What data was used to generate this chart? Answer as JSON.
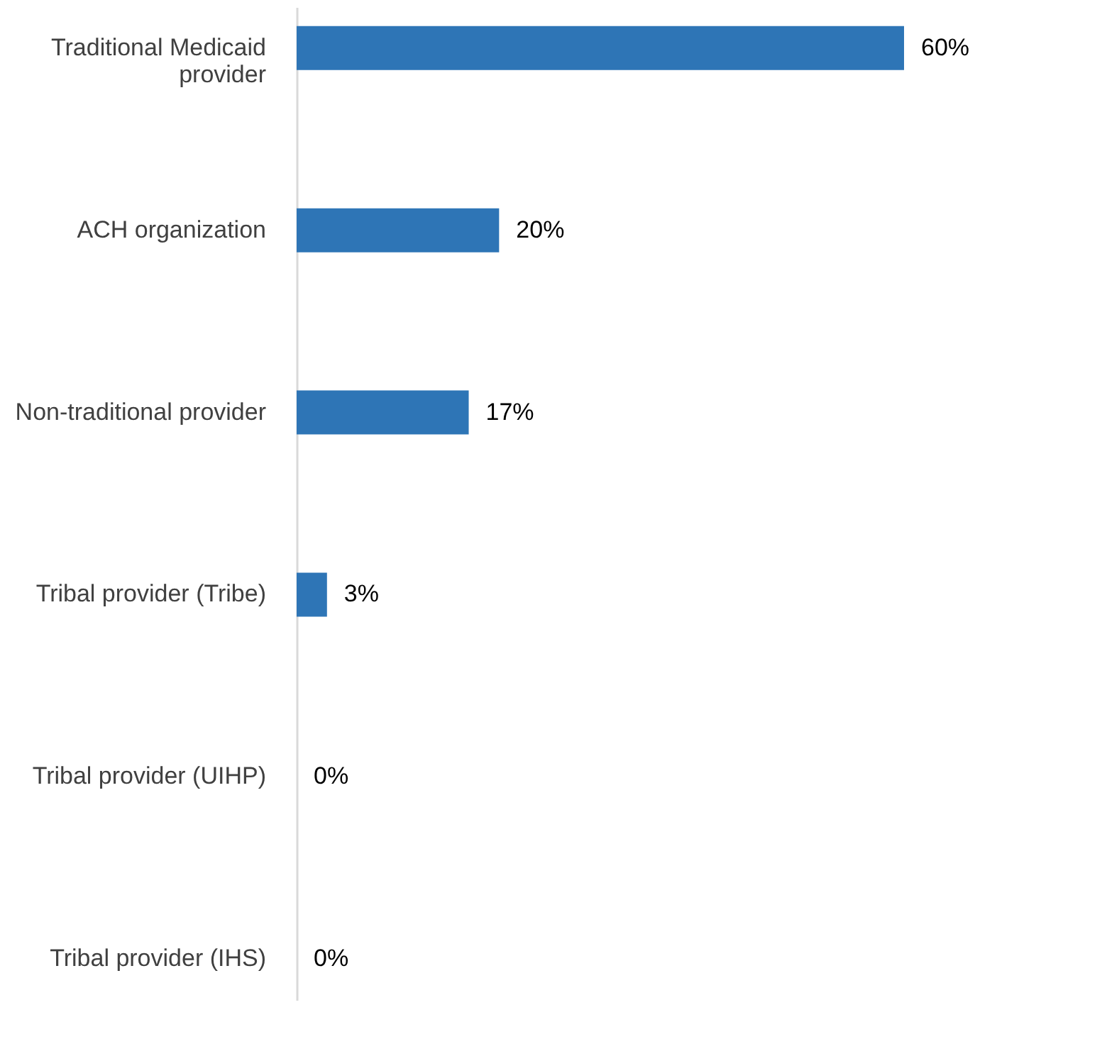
{
  "chart_data": {
    "type": "bar",
    "orientation": "horizontal",
    "categories": [
      "Traditional Medicaid provider",
      "ACH organization",
      "Non-traditional provider",
      "Tribal provider (Tribe)",
      "Tribal provider (UIHP)",
      "Tribal provider (IHS)"
    ],
    "values": [
      60,
      20,
      17,
      3,
      0,
      0
    ],
    "value_labels": [
      "60%",
      "20%",
      "17%",
      "3%",
      "0%",
      "0%"
    ],
    "color": "#2e75b6",
    "grid": false
  }
}
